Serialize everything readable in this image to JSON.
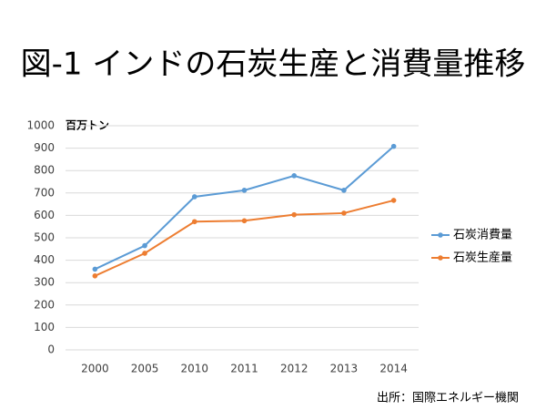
{
  "chart_data": {
    "type": "line",
    "title": "図-1 インドの石炭生産と消費量推移",
    "y_label": "百万トン",
    "source": "出所：国際エネルギー機関",
    "categories": [
      "2000",
      "2005",
      "2010",
      "2011",
      "2012",
      "2013",
      "2014"
    ],
    "series": [
      {
        "name": "石炭消費量",
        "color": "#5b9bd5",
        "values": [
          360,
          465,
          683,
          712,
          777,
          712,
          908
        ]
      },
      {
        "name": "石炭生産量",
        "color": "#ed7d31",
        "values": [
          330,
          431,
          572,
          576,
          603,
          610,
          667
        ]
      }
    ],
    "ylim": [
      0,
      1000
    ],
    "yticks": [
      0,
      100,
      200,
      300,
      400,
      500,
      600,
      700,
      800,
      900,
      1000
    ],
    "grid": true,
    "legend": "right"
  }
}
